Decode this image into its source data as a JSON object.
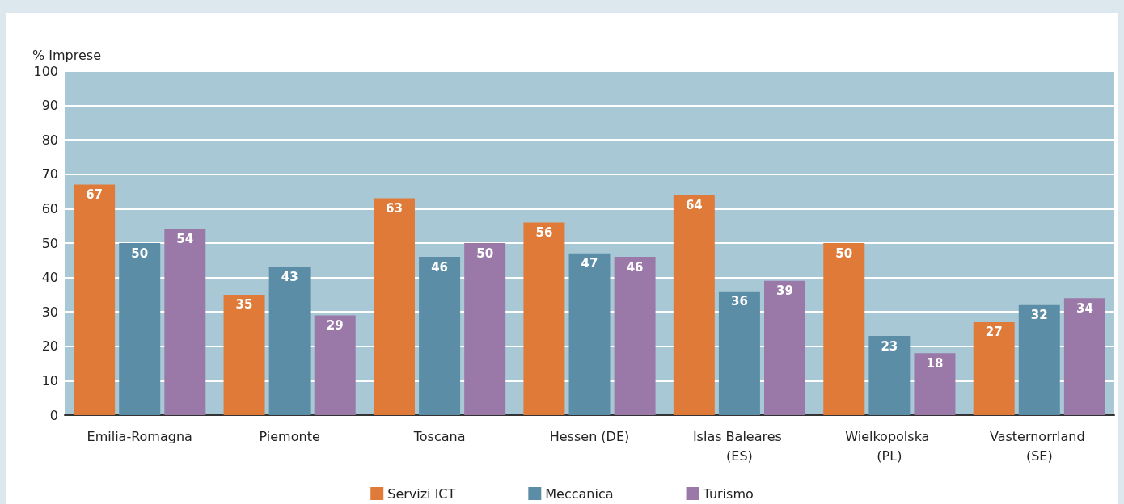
{
  "chart_data": {
    "type": "bar",
    "ylabel": "% Imprese",
    "categories": [
      "Emilia-Romagna",
      "Piemonte",
      "Toscana",
      "Hessen (DE)",
      "Islas Baleares (ES)",
      "Wielkopolska (PL)",
      "Vasternorrland (SE)"
    ],
    "series": [
      {
        "name": "Servizi ICT",
        "color": "#e07a38",
        "values": [
          67,
          35,
          63,
          56,
          64,
          50,
          27
        ]
      },
      {
        "name": "Meccanica",
        "color": "#5b8ea6",
        "values": [
          50,
          43,
          46,
          47,
          36,
          23,
          32
        ]
      },
      {
        "name": "Turismo",
        "color": "#9a78a8",
        "values": [
          54,
          29,
          50,
          46,
          39,
          18,
          34
        ]
      }
    ],
    "ylim": [
      0,
      100
    ],
    "yticks": [
      0,
      10,
      20,
      30,
      40,
      50,
      60,
      70,
      80,
      90,
      100
    ],
    "grid": "y",
    "legend": "bottom",
    "data_labels": true
  }
}
